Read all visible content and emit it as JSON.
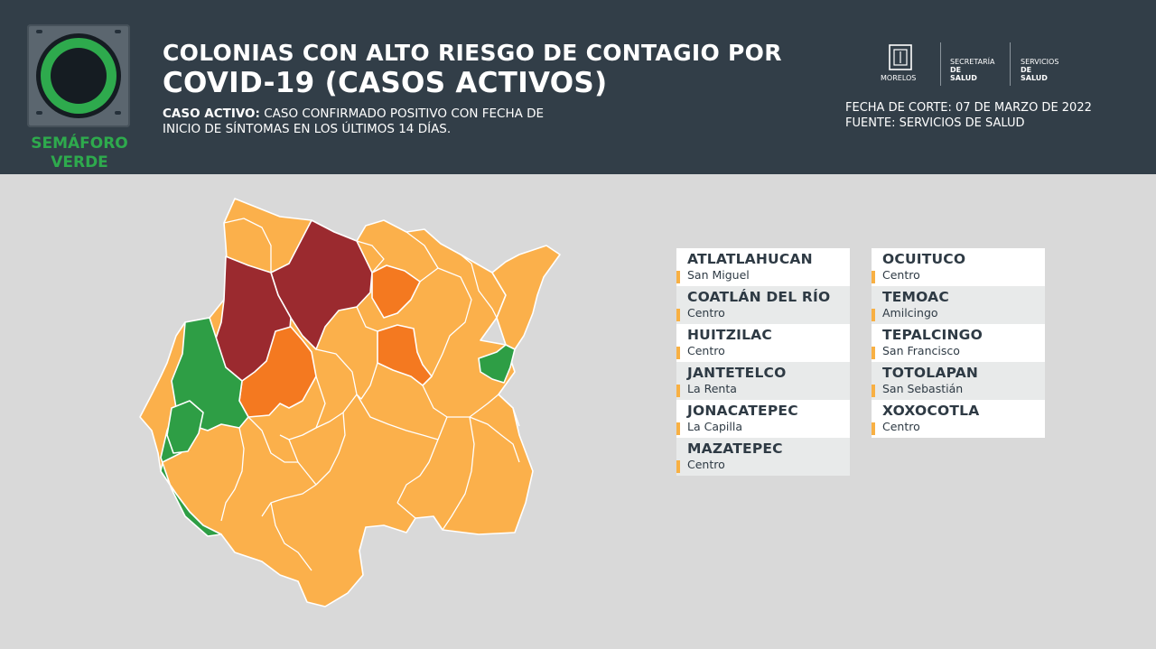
{
  "badge": {
    "line1": "SEMÁFORO",
    "line2": "VERDE",
    "color": "#2eaa4d"
  },
  "title": {
    "line1": "COLONIAS CON ALTO RIESGO DE CONTAGIO POR",
    "line2": "COVID-19 (CASOS ACTIVOS)"
  },
  "definition": {
    "label": "CASO ACTIVO:",
    "text1": "CASO CONFIRMADO POSITIVO CON FECHA DE",
    "text2": "INICIO DE SÍNTOMAS EN LOS ÚLTIMOS 14 DÍAS."
  },
  "logos": {
    "morelos": "MORELOS",
    "secretaria1": "SECRETARÍA",
    "secretaria2": "DE SALUD",
    "servicios1": "SERVICIOS",
    "servicios2": "DE SALUD"
  },
  "meta": {
    "fecha": "FECHA DE CORTE: 07 DE MARZO DE 2022",
    "fuente": "FUENTE: SERVICIOS DE SALUD"
  },
  "colors": {
    "green": "#2e9e45",
    "orange": "#fbb04b",
    "dark_orange": "#f47920",
    "dark_red": "#9b2a2f"
  },
  "list_left": [
    {
      "municipio": "ATLATLAHUCAN",
      "colonia": "San Miguel"
    },
    {
      "municipio": "COATLÁN DEL RÍO",
      "colonia": "Centro"
    },
    {
      "municipio": "HUITZILAC",
      "colonia": "Centro"
    },
    {
      "municipio": "JANTETELCO",
      "colonia": "La Renta"
    },
    {
      "municipio": "JONACATEPEC",
      "colonia": "La Capilla"
    },
    {
      "municipio": "MAZATEPEC",
      "colonia": "Centro"
    }
  ],
  "list_right": [
    {
      "municipio": "OCUITUCO",
      "colonia": "Centro"
    },
    {
      "municipio": "TEMOAC",
      "colonia": "Amilcingo"
    },
    {
      "municipio": "TEPALCINGO",
      "colonia": "San Francisco"
    },
    {
      "municipio": "TOTOLAPAN",
      "colonia": "San Sebastián"
    },
    {
      "municipio": "XOXOCOTLA",
      "colonia": "Centro"
    }
  ]
}
